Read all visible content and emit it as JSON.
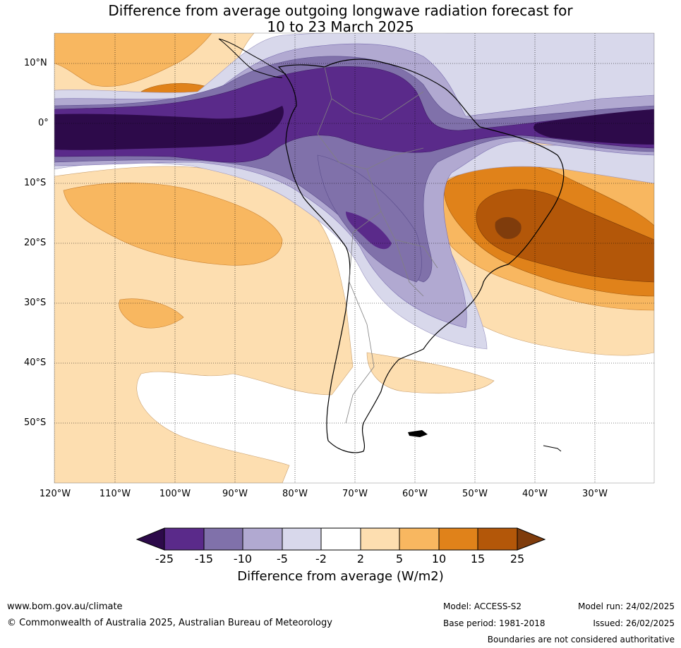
{
  "title": {
    "line1": "Difference from average outgoing longwave radiation forecast for",
    "line2": "10 to 23 March 2025"
  },
  "map": {
    "lat_labels": [
      "10°N",
      "0°",
      "10°S",
      "20°S",
      "30°S",
      "40°S",
      "50°S"
    ],
    "lon_labels": [
      "120°W",
      "110°W",
      "100°W",
      "90°W",
      "80°W",
      "70°W",
      "60°W",
      "50°W",
      "40°W",
      "30°W"
    ],
    "colors": {
      "neg25": "#2d0a4a",
      "neg15": "#5a2a8a",
      "neg10": "#8071aa",
      "neg5": "#b1a9d1",
      "neg2": "#d8d8eb",
      "neutral": "#ffffff",
      "pos2": "#fddeb0",
      "pos5": "#f8b760",
      "pos10": "#e0821a",
      "pos15": "#b35709",
      "pos25": "#7f3c0c"
    }
  },
  "colorbar": {
    "ticks": [
      "-25",
      "-15",
      "-10",
      "-5",
      "-2",
      "2",
      "5",
      "10",
      "15",
      "25"
    ],
    "label": "Difference from average (W/m2)"
  },
  "footer": {
    "website": "www.bom.gov.au/climate",
    "copyright": "© Commonwealth of Australia 2025, Australian Bureau of Meteorology",
    "model": "Model: ACCESS-S2",
    "base_period": "Base period: 1981-2018",
    "model_run": "Model run: 24/02/2025",
    "issued": "Issued: 26/02/2025",
    "disclaimer": "Boundaries are not considered authoritative"
  }
}
